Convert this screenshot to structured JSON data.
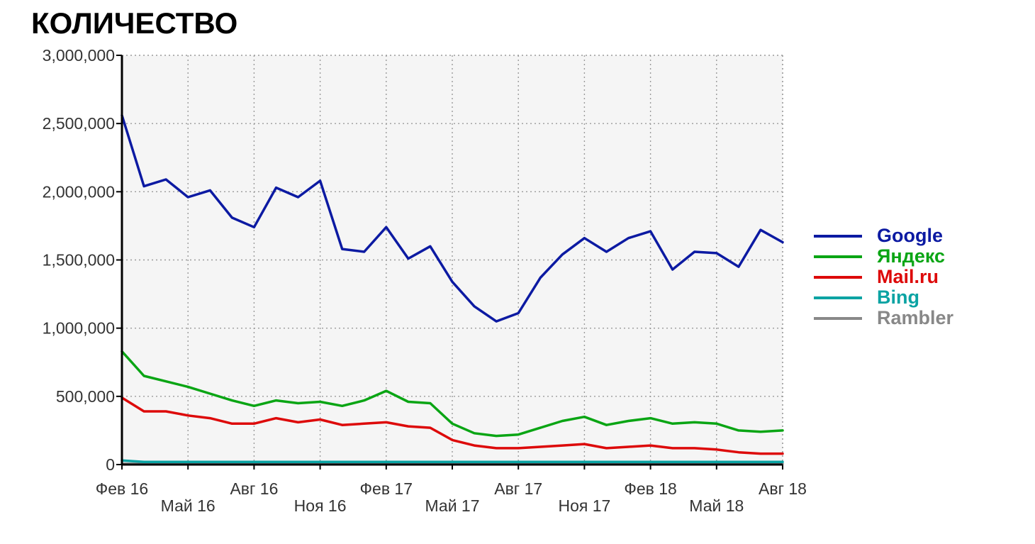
{
  "chart_data": {
    "type": "line",
    "title": "КОЛИЧЕСТВО",
    "xlabel": "",
    "ylabel": "",
    "x": [
      "2016-02",
      "2016-03",
      "2016-04",
      "2016-05",
      "2016-06",
      "2016-07",
      "2016-08",
      "2016-09",
      "2016-10",
      "2016-11",
      "2016-12",
      "2017-01",
      "2017-02",
      "2017-03",
      "2017-04",
      "2017-05",
      "2017-06",
      "2017-07",
      "2017-08",
      "2017-09",
      "2017-10",
      "2017-11",
      "2017-12",
      "2018-01",
      "2018-02",
      "2018-03",
      "2018-04",
      "2018-05",
      "2018-06",
      "2018-07",
      "2018-08"
    ],
    "xticks": [
      {
        "x": "2016-02",
        "label": "Фев 16",
        "row": 0
      },
      {
        "x": "2016-05",
        "label": "Май 16",
        "row": 1
      },
      {
        "x": "2016-08",
        "label": "Авг 16",
        "row": 0
      },
      {
        "x": "2016-11",
        "label": "Ноя 16",
        "row": 1
      },
      {
        "x": "2017-02",
        "label": "Фев 17",
        "row": 0
      },
      {
        "x": "2017-05",
        "label": "Май 17",
        "row": 1
      },
      {
        "x": "2017-08",
        "label": "Авг 17",
        "row": 0
      },
      {
        "x": "2017-11",
        "label": "Ноя 17",
        "row": 1
      },
      {
        "x": "2018-02",
        "label": "Фев 18",
        "row": 0
      },
      {
        "x": "2018-05",
        "label": "Май 18",
        "row": 1
      },
      {
        "x": "2018-08",
        "label": "Авг 18",
        "row": 0
      }
    ],
    "yticks": [
      {
        "value": 0,
        "label": "0"
      },
      {
        "value": 500000,
        "label": "500,000"
      },
      {
        "value": 1000000,
        "label": "1,000,000"
      },
      {
        "value": 1500000,
        "label": "1,500,000"
      },
      {
        "value": 2000000,
        "label": "2,000,000"
      },
      {
        "value": 2500000,
        "label": "2,500,000"
      },
      {
        "value": 3000000,
        "label": "3,000,000"
      }
    ],
    "ylim": [
      0,
      3000000
    ],
    "grid": true,
    "legend_position": "right",
    "series": [
      {
        "name": "Google",
        "color": "#0c1aa2",
        "values": [
          2560000,
          2040000,
          2090000,
          1960000,
          2010000,
          1810000,
          1740000,
          2030000,
          1960000,
          2080000,
          1580000,
          1560000,
          1740000,
          1510000,
          1600000,
          1340000,
          1160000,
          1050000,
          1110000,
          1370000,
          1540000,
          1660000,
          1560000,
          1660000,
          1710000,
          1430000,
          1560000,
          1550000,
          1450000,
          1720000,
          1630000
        ]
      },
      {
        "name": "Яндекс",
        "color": "#0aa514",
        "values": [
          830000,
          650000,
          610000,
          570000,
          520000,
          470000,
          430000,
          470000,
          450000,
          460000,
          430000,
          470000,
          540000,
          460000,
          450000,
          300000,
          230000,
          210000,
          220000,
          270000,
          320000,
          350000,
          290000,
          320000,
          340000,
          300000,
          310000,
          300000,
          250000,
          240000,
          250000
        ]
      },
      {
        "name": "Mail.ru",
        "color": "#dd0a0a",
        "values": [
          490000,
          390000,
          390000,
          360000,
          340000,
          300000,
          300000,
          340000,
          310000,
          330000,
          290000,
          300000,
          310000,
          280000,
          270000,
          180000,
          140000,
          120000,
          120000,
          130000,
          140000,
          150000,
          120000,
          130000,
          140000,
          120000,
          120000,
          110000,
          90000,
          80000,
          80000
        ]
      },
      {
        "name": "Bing",
        "color": "#0aa3a3",
        "values": [
          30000,
          20000,
          20000,
          20000,
          20000,
          20000,
          20000,
          20000,
          20000,
          20000,
          20000,
          20000,
          20000,
          20000,
          20000,
          20000,
          20000,
          20000,
          20000,
          20000,
          20000,
          20000,
          20000,
          20000,
          20000,
          20000,
          20000,
          20000,
          20000,
          20000,
          20000
        ]
      },
      {
        "name": "Rambler",
        "color": "#888888",
        "values": [
          5000,
          5000,
          5000,
          5000,
          5000,
          5000,
          5000,
          5000,
          5000,
          5000,
          5000,
          5000,
          5000,
          5000,
          5000,
          5000,
          5000,
          5000,
          5000,
          5000,
          5000,
          5000,
          5000,
          5000,
          5000,
          5000,
          5000,
          5000,
          5000,
          5000,
          5000
        ]
      }
    ]
  }
}
